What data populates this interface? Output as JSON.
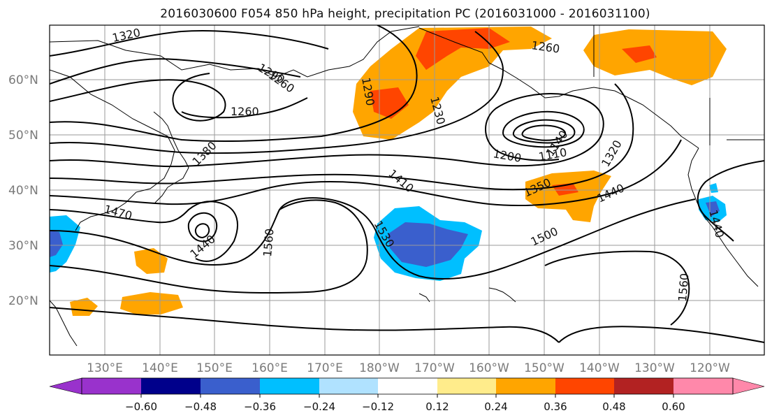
{
  "title": "2016030600 F054 850 hPa height, precipitation PC (2016031000 - 2016031100)",
  "lat_labels": [
    "60°N",
    "50°N",
    "40°N",
    "30°N",
    "20°N"
  ],
  "lon_labels": [
    "130°E",
    "140°E",
    "150°E",
    "160°E",
    "170°E",
    "180°W",
    "170°W",
    "160°W",
    "150°W",
    "140°W",
    "130°W",
    "120°W"
  ],
  "contour_labels": [
    "1320",
    "1290",
    "1260",
    "1260",
    "1290",
    "1230",
    "1260",
    "1380",
    "1410",
    "1200",
    "1110",
    "1140",
    "1320",
    "1470",
    "1350",
    "1440",
    "1440",
    "1530",
    "1560",
    "1500",
    "1440",
    "1560"
  ],
  "colorbar": {
    "ticks": [
      "−0.60",
      "−0.48",
      "−0.36",
      "−0.24",
      "−0.12",
      "0.12",
      "0.24",
      "0.36",
      "0.48",
      "0.60"
    ],
    "colors": [
      "#9932cc",
      "#00008b",
      "#3a5fcd",
      "#00bfff",
      "#b0e2ff",
      "#ffffff",
      "#ffec8b",
      "#ffa500",
      "#ff4500",
      "#b22222",
      "#ff88aa"
    ]
  }
}
